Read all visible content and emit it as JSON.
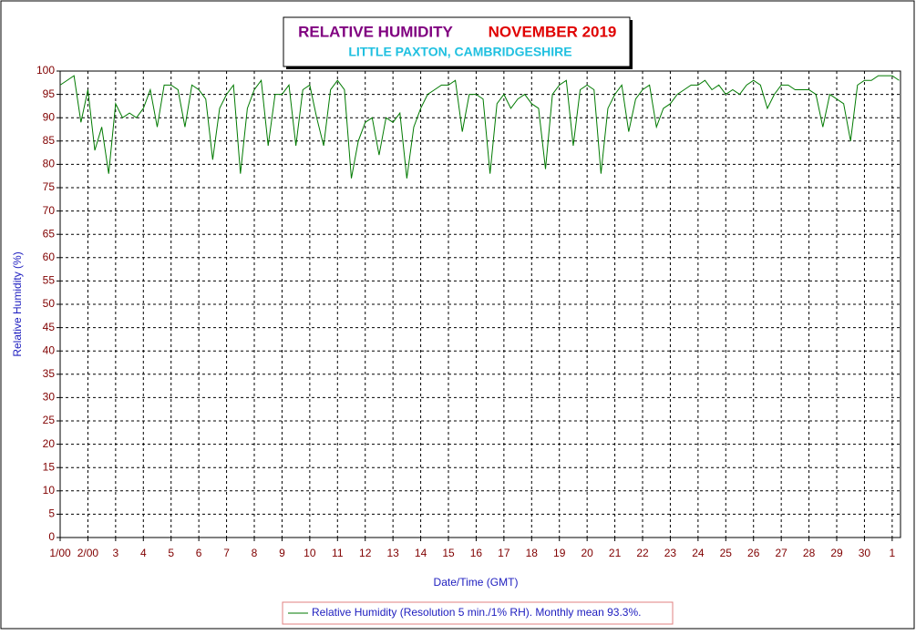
{
  "chart_data": {
    "type": "line",
    "title": "RELATIVE HUMIDITY",
    "title_month": "NOVEMBER 2019",
    "subtitle": "LITTLE PAXTON, CAMBRIDGESHIRE",
    "x_label": "Date/Time (GMT)",
    "y_label": "Relative Humidity (%)",
    "xlim": [
      1,
      31.3
    ],
    "xticks": [
      {
        "value": 1,
        "label": "1/00"
      },
      {
        "value": 2,
        "label": "2/00"
      },
      3,
      4,
      5,
      6,
      7,
      8,
      9,
      10,
      11,
      12,
      13,
      14,
      15,
      16,
      17,
      18,
      19,
      20,
      21,
      22,
      23,
      24,
      25,
      26,
      27,
      28,
      29,
      30,
      {
        "value": 31,
        "label": "1"
      }
    ],
    "ylim": [
      0,
      100
    ],
    "yticks": [
      0,
      5,
      10,
      15,
      20,
      25,
      30,
      35,
      40,
      45,
      50,
      55,
      60,
      65,
      70,
      75,
      80,
      85,
      90,
      95,
      100
    ],
    "grid": true,
    "legend": "bottom",
    "series": [
      {
        "name": "Relative Humidity (Resolution 5 min./1% RH). Monthly mean 93.3%.",
        "color": "#007a00",
        "x": [
          1,
          1.25,
          1.5,
          1.75,
          2,
          2.25,
          2.5,
          2.75,
          3,
          3.25,
          3.5,
          3.75,
          4,
          4.25,
          4.5,
          4.75,
          5,
          5.25,
          5.5,
          5.75,
          6,
          6.25,
          6.5,
          6.75,
          7,
          7.25,
          7.5,
          7.75,
          8,
          8.25,
          8.5,
          8.75,
          9,
          9.25,
          9.5,
          9.75,
          10,
          10.25,
          10.5,
          10.75,
          11,
          11.25,
          11.5,
          11.75,
          12,
          12.25,
          12.5,
          12.75,
          13,
          13.25,
          13.5,
          13.75,
          14,
          14.25,
          14.5,
          14.75,
          15,
          15.25,
          15.5,
          15.75,
          16,
          16.25,
          16.5,
          16.75,
          17,
          17.25,
          17.5,
          17.75,
          18,
          18.25,
          18.5,
          18.75,
          19,
          19.25,
          19.5,
          19.75,
          20,
          20.25,
          20.5,
          20.75,
          21,
          21.25,
          21.5,
          21.75,
          22,
          22.25,
          22.5,
          22.75,
          23,
          23.25,
          23.5,
          23.75,
          24,
          24.25,
          24.5,
          24.75,
          25,
          25.25,
          25.5,
          25.75,
          26,
          26.25,
          26.5,
          26.75,
          27,
          27.25,
          27.5,
          27.75,
          28,
          28.25,
          28.5,
          28.75,
          29,
          29.25,
          29.5,
          29.75,
          30,
          30.25,
          30.5,
          30.75,
          31,
          31.25
        ],
        "values": [
          97,
          98,
          99,
          89,
          96,
          83,
          88,
          78,
          93,
          90,
          91,
          90,
          92,
          96,
          88,
          97,
          97,
          96,
          88,
          97,
          96,
          94,
          81,
          92,
          95,
          97,
          78,
          92,
          96,
          98,
          84,
          95,
          95,
          97,
          84,
          96,
          97,
          90,
          84,
          96,
          98,
          96,
          77,
          85,
          89,
          90,
          82,
          90,
          89,
          91,
          77,
          88,
          92,
          95,
          96,
          97,
          97,
          98,
          87,
          95,
          95,
          94,
          78,
          93,
          95,
          92,
          94,
          95,
          93,
          92,
          79,
          95,
          97,
          98,
          84,
          96,
          97,
          96,
          78,
          92,
          95,
          97,
          87,
          94,
          96,
          97,
          88,
          92,
          93,
          95,
          96,
          97,
          97,
          98,
          96,
          97,
          95,
          96,
          95,
          97,
          98,
          97,
          92,
          95,
          97,
          97,
          96,
          96,
          96,
          95,
          88,
          95,
          94,
          93,
          85,
          97,
          98,
          98,
          99,
          99,
          99,
          98
        ]
      }
    ]
  }
}
